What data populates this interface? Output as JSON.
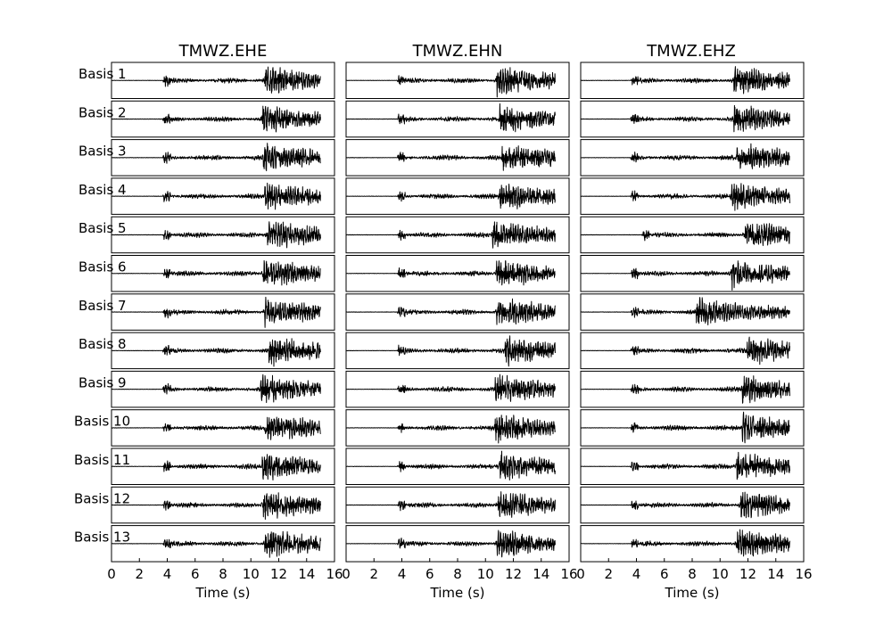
{
  "chart_data": {
    "type": "line",
    "layout": "small-multiples grid, 13 rows x 3 columns",
    "columns": [
      "TMWZ.EHE",
      "TMWZ.EHN",
      "TMWZ.EHZ"
    ],
    "rows": [
      "Basis 1",
      "Basis 2",
      "Basis 3",
      "Basis 4",
      "Basis 5",
      "Basis 6",
      "Basis 7",
      "Basis 8",
      "Basis 9",
      "Basis 10",
      "Basis 11",
      "Basis 12",
      "Basis 13"
    ],
    "xlabel": "Time (s)",
    "xlim": [
      0,
      16
    ],
    "xticks": [
      "0",
      "2",
      "4",
      "6",
      "8",
      "10",
      "12",
      "14",
      "16"
    ],
    "trace_time_range": [
      0,
      15
    ],
    "grid": false,
    "legend": "none",
    "line_color": "#000000",
    "approx_wave_onsets_s": {
      "TMWZ.EHE": [
        11.0,
        10.8,
        10.9,
        11.0,
        11.2,
        10.9,
        11.0,
        11.3,
        10.7,
        11.0,
        10.8,
        10.9,
        11.0
      ],
      "TMWZ.EHN": [
        10.8,
        11.0,
        11.2,
        11.0,
        10.5,
        10.8,
        10.8,
        11.4,
        10.7,
        10.7,
        11.0,
        10.9,
        10.8
      ],
      "TMWZ.EHZ": [
        11.0,
        11.0,
        11.2,
        10.8,
        11.8,
        10.8,
        8.3,
        11.9,
        11.6,
        11.6,
        11.2,
        11.5,
        11.2
      ]
    },
    "approx_early_arrival_s": {
      "TMWZ.EHE": [
        4.0,
        4.0,
        4.0,
        4.0,
        4.0,
        4.0,
        4.0,
        4.0,
        4.0,
        4.0,
        4.0,
        4.0,
        4.0
      ],
      "TMWZ.EHN": [
        4.0,
        4.0,
        4.0,
        4.0,
        4.0,
        4.0,
        4.0,
        4.0,
        4.0,
        4.0,
        4.0,
        4.0,
        4.0
      ],
      "TMWZ.EHZ": [
        3.9,
        3.9,
        3.9,
        3.9,
        4.7,
        3.9,
        3.9,
        3.9,
        3.9,
        3.9,
        3.9,
        3.9,
        3.9
      ]
    }
  }
}
